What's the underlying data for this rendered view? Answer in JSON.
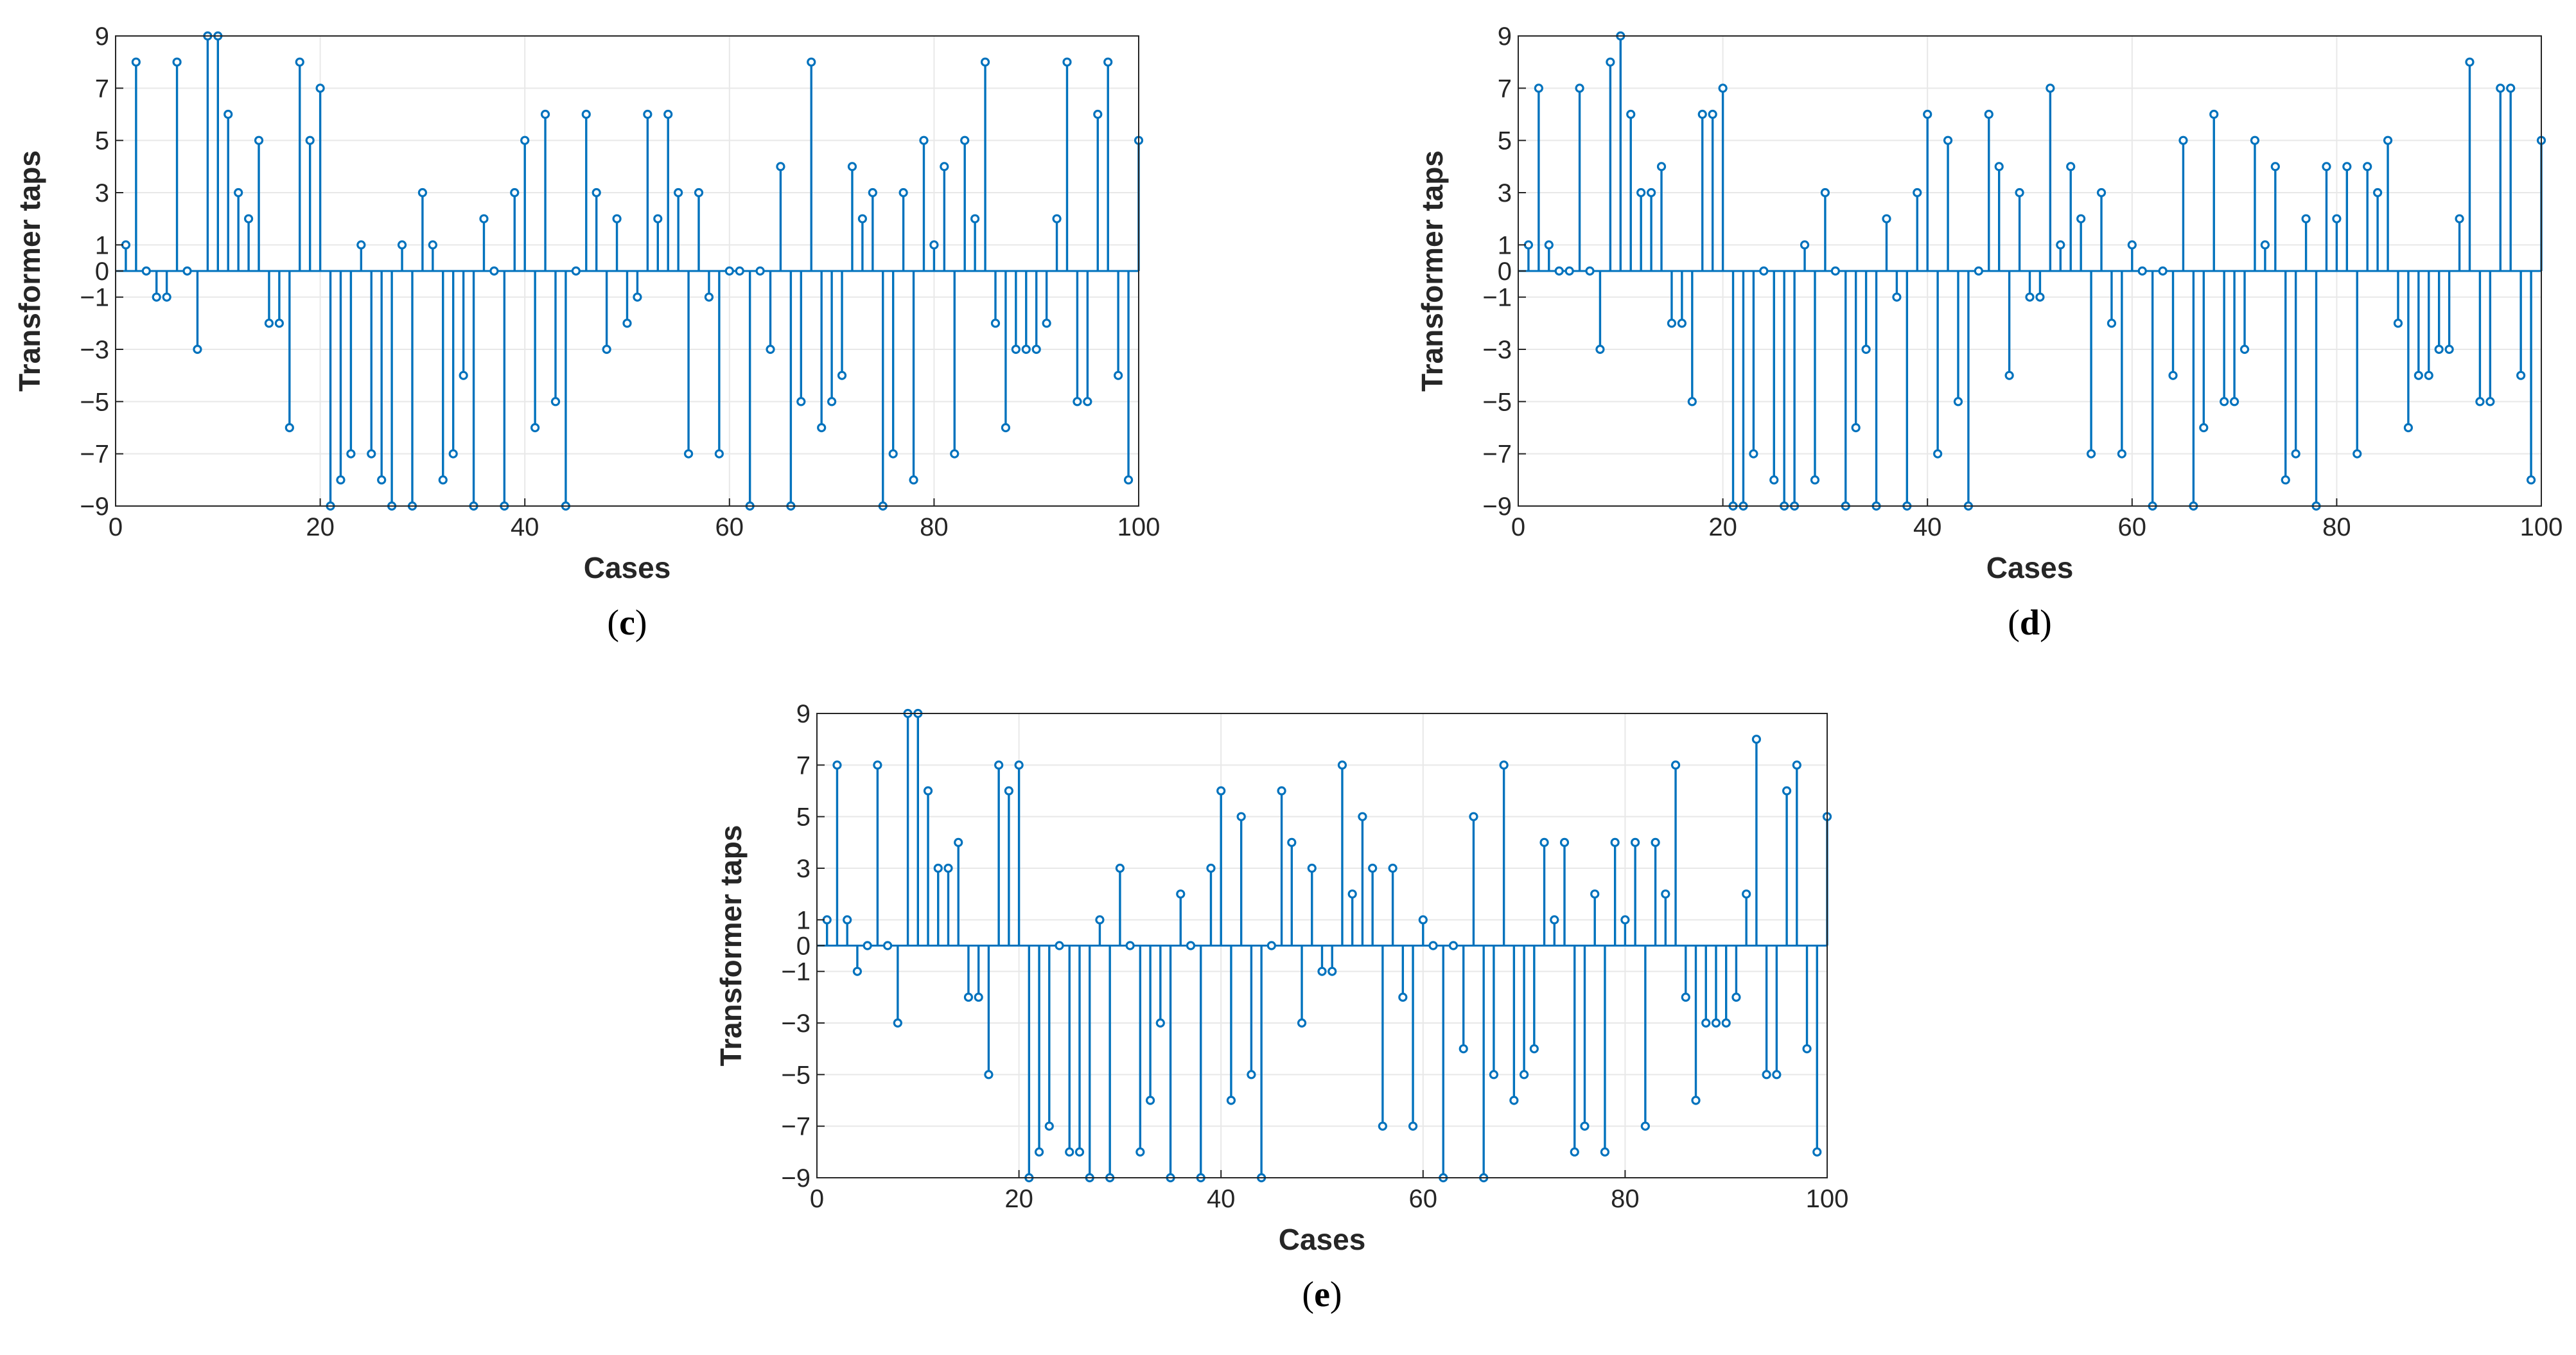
{
  "figure": {
    "stem_color": "#0072BD",
    "grid_color": "#e8e8e8",
    "axis_color": "#262626"
  },
  "chart_data": [
    {
      "type": "stem",
      "panel_label": "c",
      "xlabel": "Cases",
      "ylabel": "Transformer taps",
      "xlim": [
        0,
        100
      ],
      "ylim": [
        -9,
        9
      ],
      "xticks": [
        0,
        20,
        40,
        60,
        80,
        100
      ],
      "yticks": [
        -9,
        -7,
        -5,
        -3,
        -1,
        0,
        1,
        3,
        5,
        7,
        9
      ],
      "grid": true,
      "x": [
        1,
        2,
        3,
        4,
        5,
        6,
        7,
        8,
        9,
        10,
        11,
        12,
        13,
        14,
        15,
        16,
        17,
        18,
        19,
        20,
        21,
        22,
        23,
        24,
        25,
        26,
        27,
        28,
        29,
        30,
        31,
        32,
        33,
        34,
        35,
        36,
        37,
        38,
        39,
        40,
        41,
        42,
        43,
        44,
        45,
        46,
        47,
        48,
        49,
        50,
        51,
        52,
        53,
        54,
        55,
        56,
        57,
        58,
        59,
        60,
        61,
        62,
        63,
        64,
        65,
        66,
        67,
        68,
        69,
        70,
        71,
        72,
        73,
        74,
        75,
        76,
        77,
        78,
        79,
        80,
        81,
        82,
        83,
        84,
        85,
        86,
        87,
        88,
        89,
        90,
        91,
        92,
        93,
        94,
        95,
        96,
        97,
        98,
        99,
        100
      ],
      "values": [
        1,
        8,
        0,
        -1,
        -1,
        8,
        0,
        -3,
        9,
        9,
        6,
        3,
        2,
        5,
        -2,
        -2,
        -6,
        8,
        5,
        7,
        -9,
        -8,
        -7,
        1,
        -7,
        -8,
        -9,
        1,
        -9,
        3,
        1,
        -8,
        -7,
        -4,
        -9,
        2,
        0,
        -9,
        3,
        5,
        -6,
        6,
        -5,
        -9,
        0,
        6,
        3,
        -3,
        2,
        -2,
        -1,
        6,
        2,
        6,
        3,
        -7,
        3,
        -1,
        -7,
        0,
        0,
        -9,
        0,
        -3,
        4,
        -9,
        -5,
        8,
        -6,
        -5,
        -4,
        4,
        2,
        3,
        -9,
        -7,
        3,
        -8,
        5,
        1,
        4,
        -7,
        5,
        2,
        8,
        -2,
        -6,
        -3,
        -3,
        -3,
        -2,
        2,
        8,
        -5,
        -5,
        6,
        8,
        -4,
        -8,
        5
      ]
    },
    {
      "type": "stem",
      "panel_label": "d",
      "xlabel": "Cases",
      "ylabel": "Transformer taps",
      "xlim": [
        0,
        100
      ],
      "ylim": [
        -9,
        9
      ],
      "xticks": [
        0,
        20,
        40,
        60,
        80,
        100
      ],
      "yticks": [
        -9,
        -7,
        -5,
        -3,
        -1,
        0,
        1,
        3,
        5,
        7,
        9
      ],
      "grid": true,
      "x": [
        1,
        2,
        3,
        4,
        5,
        6,
        7,
        8,
        9,
        10,
        11,
        12,
        13,
        14,
        15,
        16,
        17,
        18,
        19,
        20,
        21,
        22,
        23,
        24,
        25,
        26,
        27,
        28,
        29,
        30,
        31,
        32,
        33,
        34,
        35,
        36,
        37,
        38,
        39,
        40,
        41,
        42,
        43,
        44,
        45,
        46,
        47,
        48,
        49,
        50,
        51,
        52,
        53,
        54,
        55,
        56,
        57,
        58,
        59,
        60,
        61,
        62,
        63,
        64,
        65,
        66,
        67,
        68,
        69,
        70,
        71,
        72,
        73,
        74,
        75,
        76,
        77,
        78,
        79,
        80,
        81,
        82,
        83,
        84,
        85,
        86,
        87,
        88,
        89,
        90,
        91,
        92,
        93,
        94,
        95,
        96,
        97,
        98,
        99,
        100
      ],
      "values": [
        1,
        7,
        1,
        0,
        0,
        7,
        0,
        -3,
        8,
        9,
        6,
        3,
        3,
        4,
        -2,
        -2,
        -5,
        6,
        6,
        7,
        -9,
        -9,
        -7,
        0,
        -8,
        -9,
        -9,
        1,
        -8,
        3,
        0,
        -9,
        -6,
        -3,
        -9,
        2,
        -1,
        -9,
        3,
        6,
        -7,
        5,
        -5,
        -9,
        0,
        6,
        4,
        -4,
        3,
        -1,
        -1,
        7,
        1,
        4,
        2,
        -7,
        3,
        -2,
        -7,
        1,
        0,
        -9,
        0,
        -4,
        5,
        -9,
        -6,
        6,
        -5,
        -5,
        -3,
        5,
        1,
        4,
        -8,
        -7,
        2,
        -9,
        4,
        2,
        4,
        -7,
        4,
        3,
        5,
        -2,
        -6,
        -4,
        -4,
        -3,
        -3,
        2,
        8,
        -5,
        -5,
        7,
        7,
        -4,
        -8,
        5
      ]
    },
    {
      "type": "stem",
      "panel_label": "e",
      "xlabel": "Cases",
      "ylabel": "Transformer taps",
      "xlim": [
        0,
        100
      ],
      "ylim": [
        -9,
        9
      ],
      "xticks": [
        0,
        20,
        40,
        60,
        80,
        100
      ],
      "yticks": [
        -9,
        -7,
        -5,
        -3,
        -1,
        0,
        1,
        3,
        5,
        7,
        9
      ],
      "grid": true,
      "x": [
        1,
        2,
        3,
        4,
        5,
        6,
        7,
        8,
        9,
        10,
        11,
        12,
        13,
        14,
        15,
        16,
        17,
        18,
        19,
        20,
        21,
        22,
        23,
        24,
        25,
        26,
        27,
        28,
        29,
        30,
        31,
        32,
        33,
        34,
        35,
        36,
        37,
        38,
        39,
        40,
        41,
        42,
        43,
        44,
        45,
        46,
        47,
        48,
        49,
        50,
        51,
        52,
        53,
        54,
        55,
        56,
        57,
        58,
        59,
        60,
        61,
        62,
        63,
        64,
        65,
        66,
        67,
        68,
        69,
        70,
        71,
        72,
        73,
        74,
        75,
        76,
        77,
        78,
        79,
        80,
        81,
        82,
        83,
        84,
        85,
        86,
        87,
        88,
        89,
        90,
        91,
        92,
        93,
        94,
        95,
        96,
        97,
        98,
        99,
        100
      ],
      "values": [
        1,
        7,
        1,
        -1,
        0,
        7,
        0,
        -3,
        9,
        9,
        6,
        3,
        3,
        4,
        -2,
        -2,
        -5,
        7,
        6,
        7,
        -9,
        -8,
        -7,
        0,
        -8,
        -8,
        -9,
        1,
        -9,
        3,
        0,
        -8,
        -6,
        -3,
        -9,
        2,
        0,
        -9,
        3,
        6,
        -6,
        5,
        -5,
        -9,
        0,
        6,
        4,
        -3,
        3,
        -1,
        -1,
        7,
        2,
        5,
        3,
        -7,
        3,
        -2,
        -7,
        1,
        0,
        -9,
        0,
        -4,
        5,
        -9,
        -5,
        7,
        -6,
        -5,
        -4,
        4,
        1,
        4,
        -8,
        -7,
        2,
        -8,
        4,
        1,
        4,
        -7,
        4,
        2,
        7,
        -2,
        -6,
        -3,
        -3,
        -3,
        -2,
        2,
        8,
        -5,
        -5,
        6,
        7,
        -4,
        -8,
        5
      ]
    }
  ]
}
